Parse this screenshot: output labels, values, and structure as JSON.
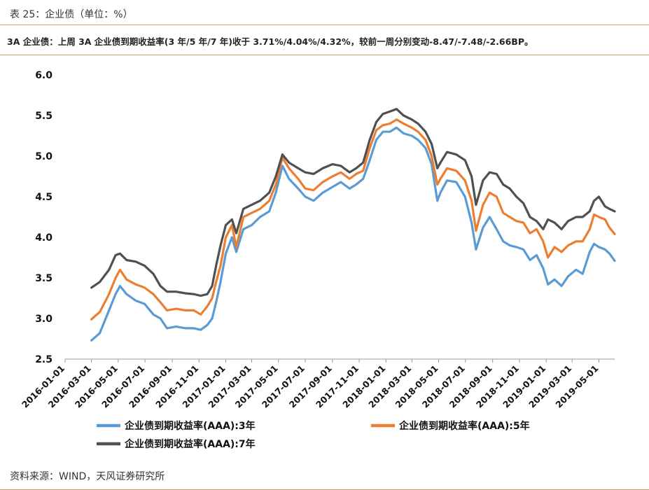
{
  "caption": "表 25：企业债（单位：%）",
  "summary": "3A 企业债：上周 3A 企业债到期收益率(3 年/5 年/7 年)收于 3.71%/4.04%/4.32%，较前一周分别变动-8.47/-7.48/-2.66BP。",
  "source": "资料来源：WIND，天风证券研究所",
  "chart_data": {
    "type": "line",
    "ylim": [
      2.5,
      6.0
    ],
    "yticks": [
      "6.0",
      "5.5",
      "5.0",
      "4.5",
      "4.0",
      "3.5",
      "3.0",
      "2.5"
    ],
    "xlim": [
      "2016-01-01",
      "2019-06-06"
    ],
    "xticks": [
      "2016-01-01",
      "2016-03-01",
      "2016-05-01",
      "2016-07-01",
      "2016-09-01",
      "2016-11-01",
      "2017-01-01",
      "2017-03-01",
      "2017-05-01",
      "2017-07-01",
      "2017-09-01",
      "2017-11-01",
      "2018-01-01",
      "2018-03-01",
      "2018-05-01",
      "2018-07-01",
      "2018-09-01",
      "2018-11-01",
      "2019-01-01",
      "2019-03-01",
      "2019-05-01"
    ],
    "grid": false,
    "legend_position": "bottom",
    "x": [
      "2016-03-01",
      "2016-03-20",
      "2016-04-10",
      "2016-04-25",
      "2016-05-05",
      "2016-05-20",
      "2016-06-10",
      "2016-06-30",
      "2016-07-20",
      "2016-08-05",
      "2016-08-20",
      "2016-09-10",
      "2016-10-01",
      "2016-10-20",
      "2016-11-05",
      "2016-11-20",
      "2016-12-01",
      "2016-12-10",
      "2016-12-20",
      "2017-01-01",
      "2017-01-15",
      "2017-01-25",
      "2017-02-10",
      "2017-03-01",
      "2017-03-20",
      "2017-04-10",
      "2017-04-25",
      "2017-05-10",
      "2017-05-25",
      "2017-06-15",
      "2017-07-01",
      "2017-07-20",
      "2017-08-10",
      "2017-09-01",
      "2017-09-20",
      "2017-10-10",
      "2017-10-25",
      "2017-11-10",
      "2017-11-25",
      "2017-12-10",
      "2017-12-25",
      "2018-01-10",
      "2018-01-25",
      "2018-02-10",
      "2018-03-01",
      "2018-03-15",
      "2018-04-01",
      "2018-04-15",
      "2018-04-28",
      "2018-05-05",
      "2018-05-20",
      "2018-06-10",
      "2018-06-30",
      "2018-07-15",
      "2018-07-25",
      "2018-08-10",
      "2018-08-25",
      "2018-09-10",
      "2018-09-25",
      "2018-10-10",
      "2018-10-25",
      "2018-11-10",
      "2018-11-25",
      "2018-12-10",
      "2018-12-25",
      "2019-01-05",
      "2019-01-20",
      "2019-02-05",
      "2019-02-20",
      "2019-03-10",
      "2019-03-25",
      "2019-04-10",
      "2019-04-20",
      "2019-05-01",
      "2019-05-15",
      "2019-05-25",
      "2019-06-06"
    ],
    "series": [
      {
        "name": "企业债到期收益率(AAA):3年",
        "color": "#5b9bd5",
        "values": [
          2.73,
          2.82,
          3.1,
          3.3,
          3.4,
          3.3,
          3.22,
          3.18,
          3.05,
          3.0,
          2.88,
          2.9,
          2.88,
          2.88,
          2.86,
          2.92,
          3.0,
          3.2,
          3.45,
          3.8,
          4.0,
          3.82,
          4.1,
          4.15,
          4.25,
          4.32,
          4.55,
          4.88,
          4.72,
          4.6,
          4.5,
          4.45,
          4.55,
          4.62,
          4.68,
          4.6,
          4.65,
          4.72,
          4.95,
          5.2,
          5.3,
          5.3,
          5.35,
          5.28,
          5.25,
          5.2,
          5.1,
          4.9,
          4.45,
          4.55,
          4.7,
          4.68,
          4.5,
          4.18,
          3.85,
          4.12,
          4.25,
          4.1,
          3.95,
          3.9,
          3.88,
          3.85,
          3.72,
          3.78,
          3.62,
          3.42,
          3.48,
          3.4,
          3.52,
          3.6,
          3.55,
          3.82,
          3.92,
          3.88,
          3.85,
          3.8,
          3.71
        ]
      },
      {
        "name": "企业债到期收益率(AAA):5年",
        "color": "#ed7d31",
        "values": [
          2.99,
          3.08,
          3.3,
          3.5,
          3.6,
          3.48,
          3.42,
          3.38,
          3.3,
          3.2,
          3.1,
          3.12,
          3.1,
          3.1,
          3.05,
          3.15,
          3.25,
          3.45,
          3.65,
          4.0,
          4.15,
          3.88,
          4.25,
          4.3,
          4.35,
          4.45,
          4.65,
          4.98,
          4.85,
          4.72,
          4.6,
          4.58,
          4.68,
          4.75,
          4.8,
          4.72,
          4.78,
          4.82,
          5.1,
          5.32,
          5.38,
          5.4,
          5.45,
          5.4,
          5.35,
          5.3,
          5.2,
          5.0,
          4.65,
          4.72,
          4.85,
          4.82,
          4.7,
          4.45,
          4.08,
          4.4,
          4.55,
          4.5,
          4.3,
          4.25,
          4.2,
          4.18,
          4.05,
          4.1,
          3.95,
          3.75,
          3.88,
          3.82,
          3.9,
          3.95,
          3.95,
          4.1,
          4.28,
          4.25,
          4.22,
          4.12,
          4.04
        ]
      },
      {
        "name": "企业债到期收益率(AAA):7年",
        "color": "#505050",
        "values": [
          3.38,
          3.45,
          3.6,
          3.78,
          3.8,
          3.72,
          3.7,
          3.65,
          3.55,
          3.4,
          3.33,
          3.33,
          3.31,
          3.3,
          3.28,
          3.3,
          3.4,
          3.65,
          3.9,
          4.15,
          4.22,
          4.05,
          4.35,
          4.4,
          4.45,
          4.55,
          4.75,
          5.02,
          4.92,
          4.85,
          4.8,
          4.78,
          4.85,
          4.9,
          4.88,
          4.8,
          4.85,
          4.92,
          5.2,
          5.42,
          5.52,
          5.55,
          5.58,
          5.5,
          5.45,
          5.4,
          5.3,
          5.15,
          4.85,
          4.92,
          5.05,
          5.02,
          4.95,
          4.75,
          4.4,
          4.7,
          4.8,
          4.78,
          4.65,
          4.6,
          4.5,
          4.42,
          4.25,
          4.2,
          4.1,
          4.22,
          4.18,
          4.1,
          4.2,
          4.25,
          4.25,
          4.32,
          4.45,
          4.5,
          4.38,
          4.35,
          4.32
        ]
      }
    ]
  }
}
